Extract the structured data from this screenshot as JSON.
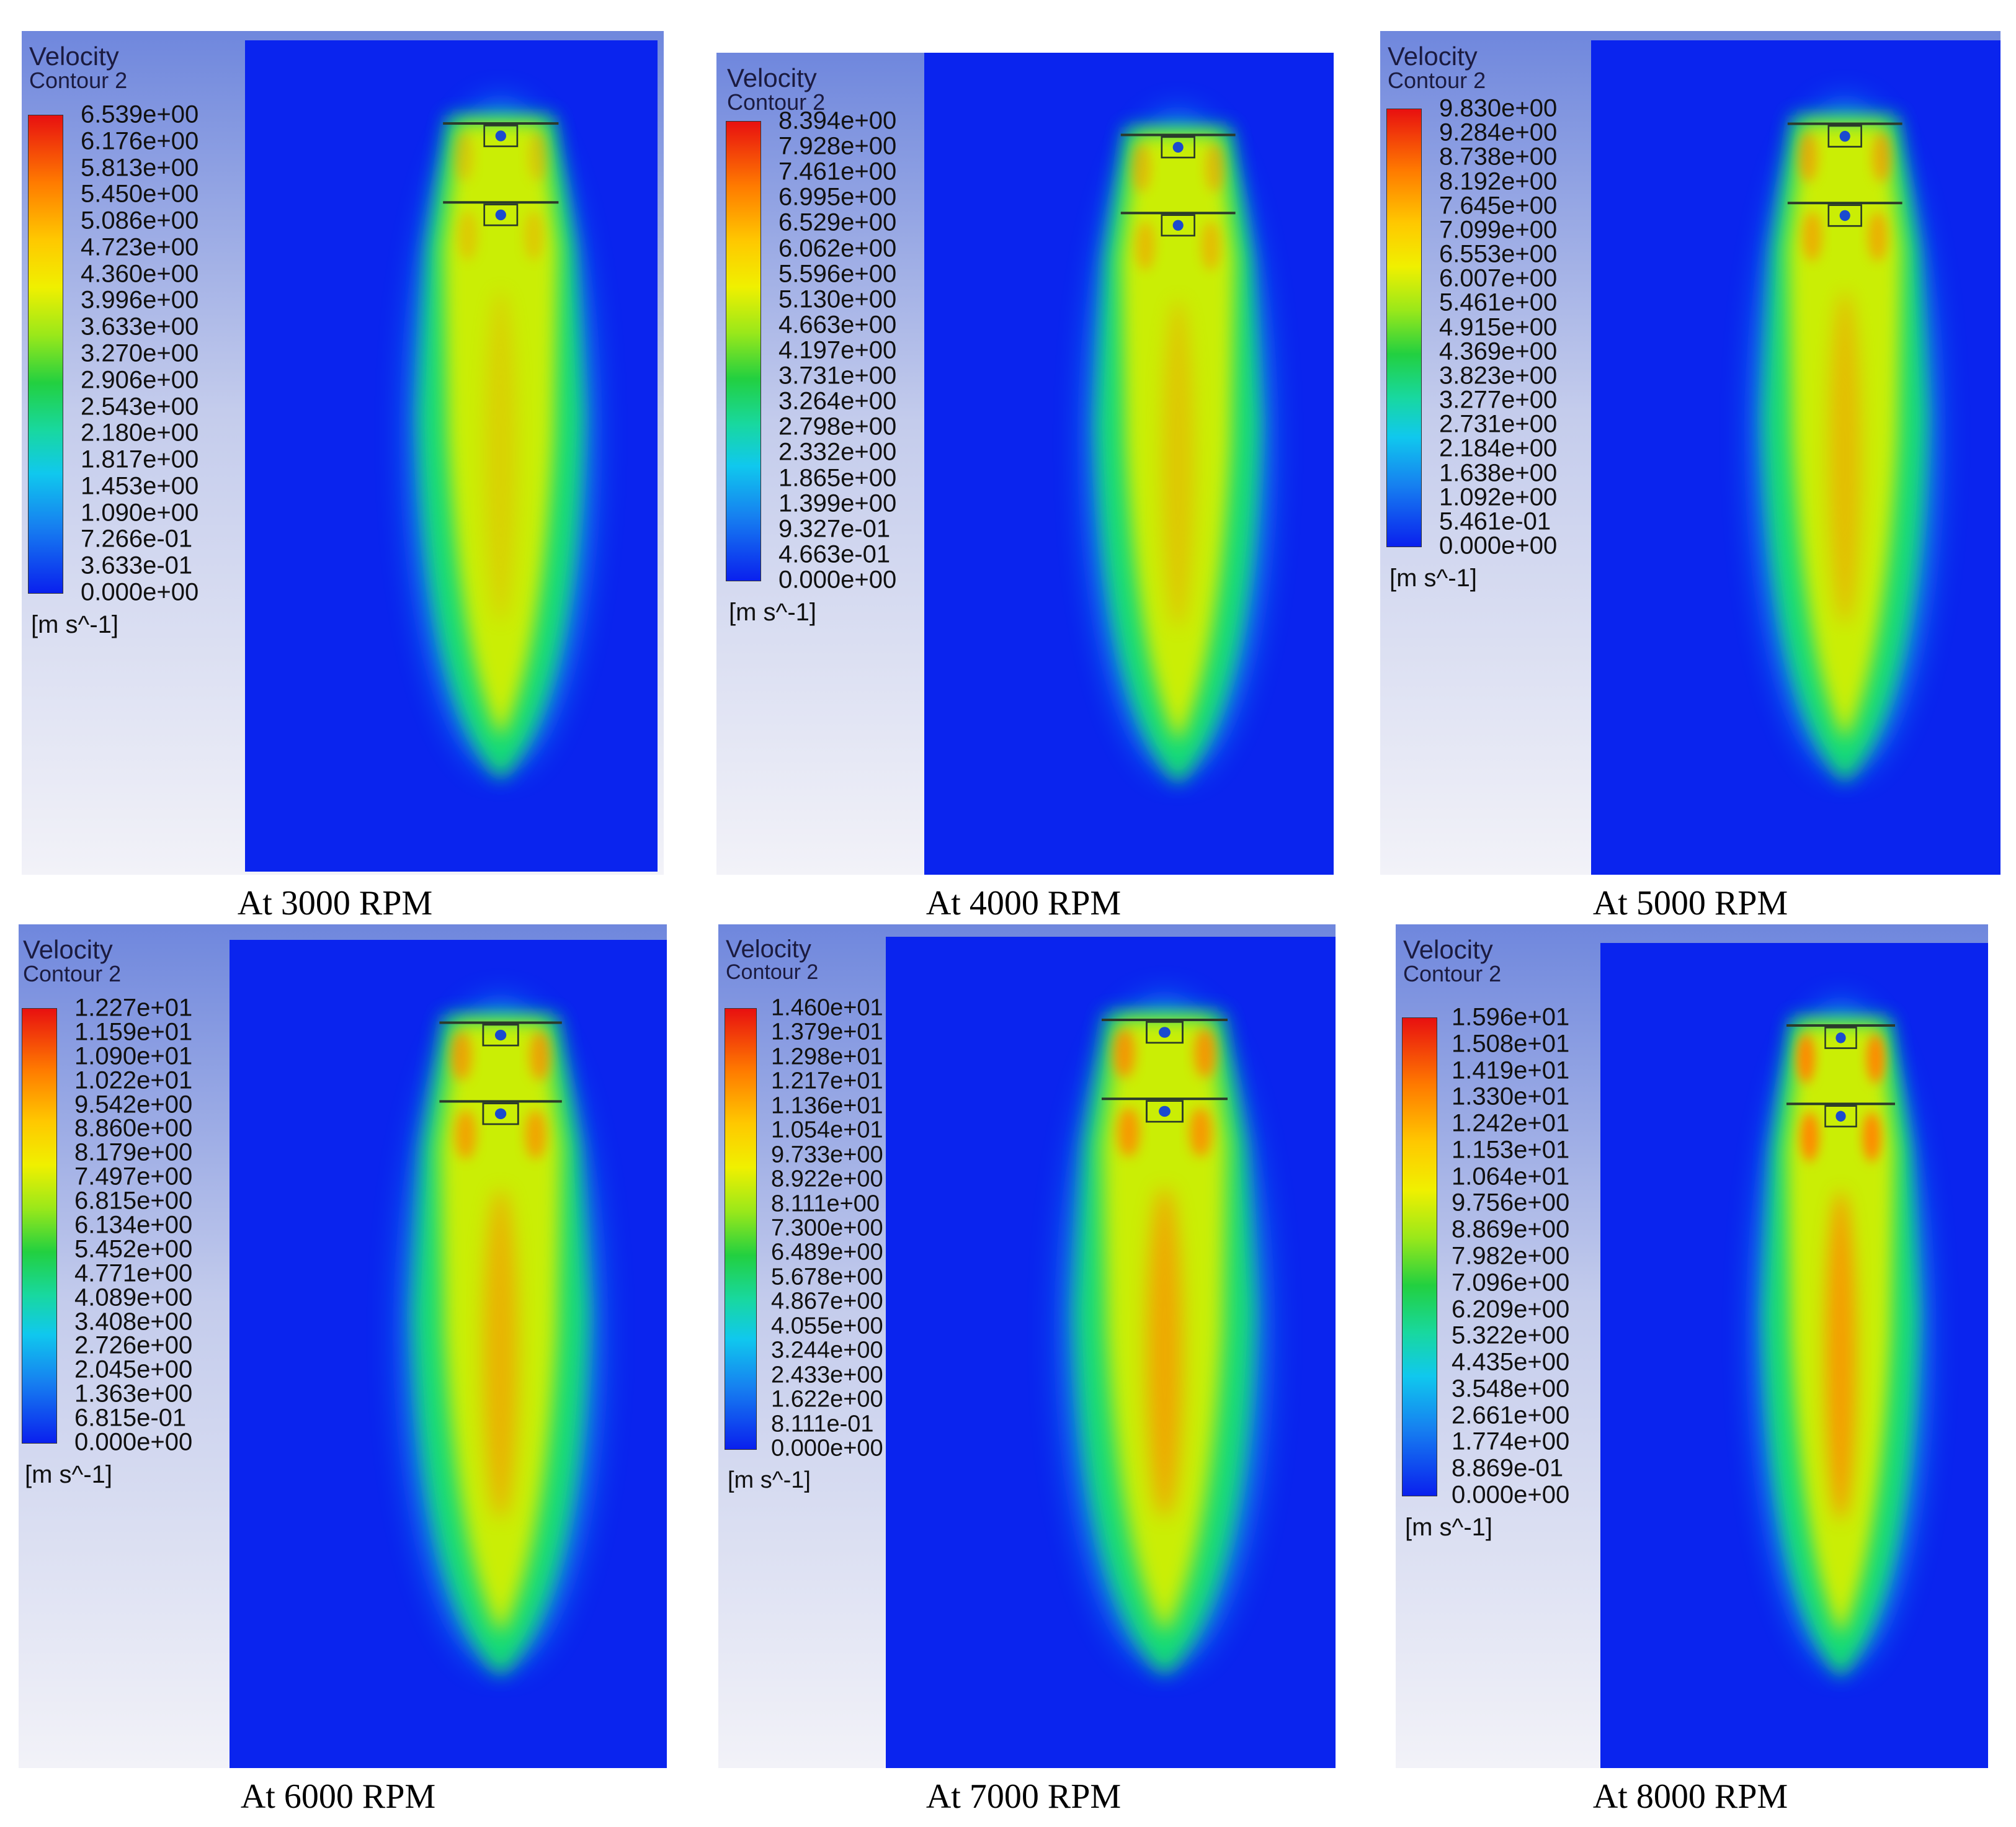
{
  "colors": {
    "legend_bg_top": "#6f87dd",
    "legend_bg_bottom": "#f2f2f8",
    "field_blue": "#0a24ee",
    "jet_core": "#ff8a00",
    "jet_mid": "#d4f000",
    "jet_outer": "#18e070"
  },
  "panels": [
    {
      "id": "rpm-3000",
      "legend_title": "Velocity",
      "legend_subtitle": "Contour 2",
      "units": "[m s^-1]",
      "caption": "At 3000 RPM",
      "ticks": [
        "6.539e+00",
        "6.176e+00",
        "5.813e+00",
        "5.450e+00",
        "5.086e+00",
        "4.723e+00",
        "4.360e+00",
        "3.996e+00",
        "3.633e+00",
        "3.270e+00",
        "2.906e+00",
        "2.543e+00",
        "2.180e+00",
        "1.817e+00",
        "1.453e+00",
        "1.090e+00",
        "7.266e-01",
        "3.633e-01",
        "0.000e+00"
      ]
    },
    {
      "id": "rpm-4000",
      "legend_title": "Velocity",
      "legend_subtitle": "Contour 2",
      "units": "[m s^-1]",
      "caption": "At 4000 RPM",
      "ticks": [
        "8.394e+00",
        "7.928e+00",
        "7.461e+00",
        "6.995e+00",
        "6.529e+00",
        "6.062e+00",
        "5.596e+00",
        "5.130e+00",
        "4.663e+00",
        "4.197e+00",
        "3.731e+00",
        "3.264e+00",
        "2.798e+00",
        "2.332e+00",
        "1.865e+00",
        "1.399e+00",
        "9.327e-01",
        "4.663e-01",
        "0.000e+00"
      ]
    },
    {
      "id": "rpm-5000",
      "legend_title": "Velocity",
      "legend_subtitle": "Contour 2",
      "units": "[m s^-1]",
      "caption": "At 5000 RPM",
      "ticks": [
        "9.830e+00",
        "9.284e+00",
        "8.738e+00",
        "8.192e+00",
        "7.645e+00",
        "7.099e+00",
        "6.553e+00",
        "6.007e+00",
        "5.461e+00",
        "4.915e+00",
        "4.369e+00",
        "3.823e+00",
        "3.277e+00",
        "2.731e+00",
        "2.184e+00",
        "1.638e+00",
        "1.092e+00",
        "5.461e-01",
        "0.000e+00"
      ]
    },
    {
      "id": "rpm-6000",
      "legend_title": "Velocity",
      "legend_subtitle": "Contour 2",
      "units": "[m s^-1]",
      "caption": "At 6000 RPM",
      "ticks": [
        "1.227e+01",
        "1.159e+01",
        "1.090e+01",
        "1.022e+01",
        "9.542e+00",
        "8.860e+00",
        "8.179e+00",
        "7.497e+00",
        "6.815e+00",
        "6.134e+00",
        "5.452e+00",
        "4.771e+00",
        "4.089e+00",
        "3.408e+00",
        "2.726e+00",
        "2.045e+00",
        "1.363e+00",
        "6.815e-01",
        "0.000e+00"
      ]
    },
    {
      "id": "rpm-7000",
      "legend_title": "Velocity",
      "legend_subtitle": "Contour 2",
      "units": "[m s^-1]",
      "caption": "At 7000 RPM",
      "ticks": [
        "1.460e+01",
        "1.379e+01",
        "1.298e+01",
        "1.217e+01",
        "1.136e+01",
        "1.054e+01",
        "9.733e+00",
        "8.922e+00",
        "8.111e+00",
        "7.300e+00",
        "6.489e+00",
        "5.678e+00",
        "4.867e+00",
        "4.055e+00",
        "3.244e+00",
        "2.433e+00",
        "1.622e+00",
        "8.111e-01",
        "0.000e+00"
      ]
    },
    {
      "id": "rpm-8000",
      "legend_title": "Velocity",
      "legend_subtitle": "Contour 2",
      "units": "[m s^-1]",
      "caption": "At 8000 RPM",
      "ticks": [
        "1.596e+01",
        "1.508e+01",
        "1.419e+01",
        "1.330e+01",
        "1.242e+01",
        "1.153e+01",
        "1.064e+01",
        "9.756e+00",
        "8.869e+00",
        "7.982e+00",
        "7.096e+00",
        "6.209e+00",
        "5.322e+00",
        "4.435e+00",
        "3.548e+00",
        "2.661e+00",
        "1.774e+00",
        "8.869e-01",
        "0.000e+00"
      ]
    }
  ]
}
